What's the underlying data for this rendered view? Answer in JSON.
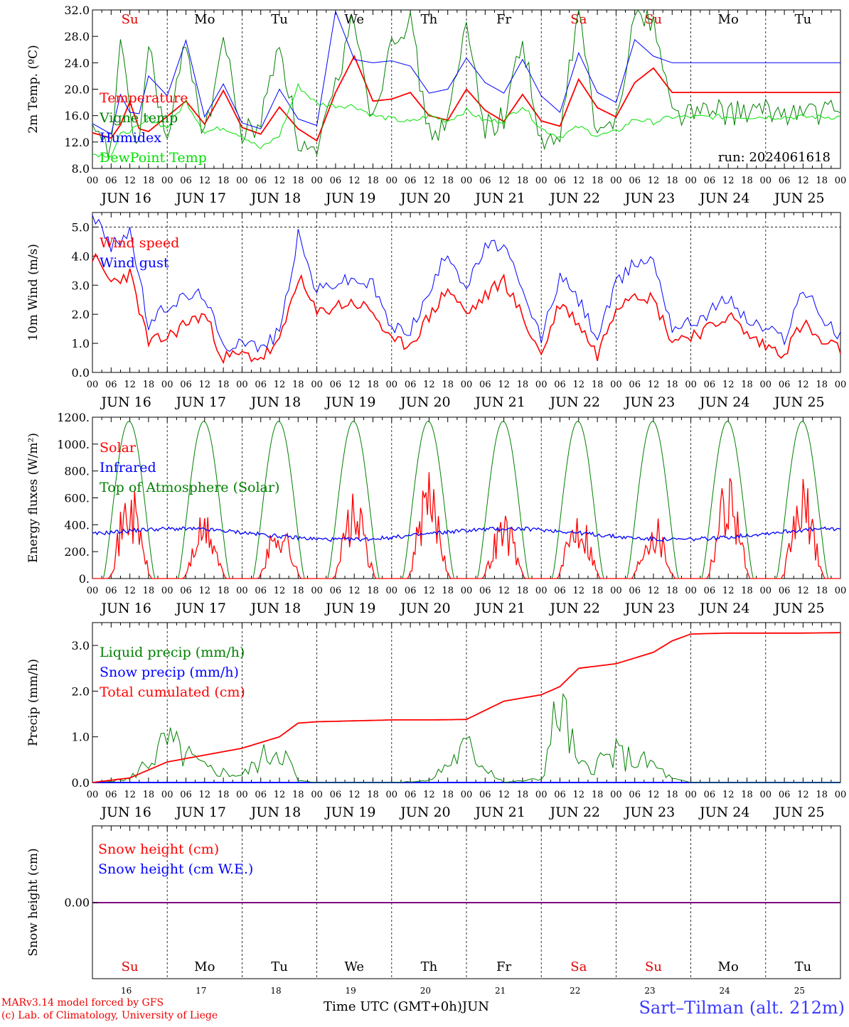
{
  "days": [
    "JUN 16",
    "JUN 17",
    "JUN 18",
    "JUN 19",
    "JUN 20",
    "JUN 21",
    "JUN 22",
    "JUN 23",
    "JUN 24",
    "JUN 25"
  ],
  "weekdays": [
    {
      "label": "Su",
      "color": "#e00000"
    },
    {
      "label": "Mo",
      "color": "#000000"
    },
    {
      "label": "Tu",
      "color": "#000000"
    },
    {
      "label": "We",
      "color": "#000000"
    },
    {
      "label": "Th",
      "color": "#000000"
    },
    {
      "label": "Fr",
      "color": "#000000"
    },
    {
      "label": "Sa",
      "color": "#e00000"
    },
    {
      "label": "Su",
      "color": "#e00000"
    },
    {
      "label": "Mo",
      "color": "#000000"
    },
    {
      "label": "Tu",
      "color": "#000000"
    }
  ],
  "hour_ticks": [
    "00",
    "06",
    "12",
    "18"
  ],
  "day_numbers": [
    "16",
    "17",
    "18",
    "19",
    "20",
    "21",
    "22",
    "23",
    "24",
    "25"
  ],
  "run_label": "run: 2024061618",
  "xaxis_title": "Time UTC (GMT+0h)",
  "month_label": "JUN",
  "footer": {
    "model": "MARv3.14 model forced by GFS",
    "credit": "(c) Lab. of Climatology, University of Liege",
    "site": "Sart–Tilman (alt. 212m)"
  },
  "colors": {
    "red": "#ff0000",
    "green": "#008000",
    "blue": "#0000ff",
    "lightgreen": "#00e000",
    "purple": "#800080"
  },
  "chart_data": [
    {
      "type": "line",
      "ylabel": "2m Temp. (ºC)",
      "ylim": [
        8,
        32
      ],
      "yticks": [
        "8.0",
        "12.0",
        "16.0",
        "20.0",
        "24.0",
        "28.0",
        "32.0"
      ],
      "x": [
        0,
        6,
        9,
        12,
        15,
        18,
        24,
        30,
        36,
        42,
        48,
        54,
        60,
        66,
        72,
        78,
        84,
        90,
        96,
        102,
        108,
        114,
        120,
        126,
        132,
        138,
        144,
        150,
        156,
        162,
        168,
        174,
        180,
        186,
        192,
        198,
        204,
        210,
        216,
        222,
        228,
        234,
        240
      ],
      "series": [
        {
          "name": "Temperature",
          "color": "red",
          "values": [
            13.4,
            12.6,
            14.6,
            18.1,
            14.0,
            13.6,
            15.9,
            18.2,
            14.7,
            19.8,
            14.2,
            13.2,
            17.3,
            14.0,
            12.2,
            19.5,
            25.0,
            18.2,
            18.5,
            19.5,
            16.0,
            15.3,
            20.0,
            16.8,
            15.1,
            19.2,
            15.2,
            14.4,
            21.5,
            17.2,
            15.8,
            21.0,
            23.2,
            19.5,
            19.5,
            19.5,
            19.5,
            19.5,
            19.5,
            19.5,
            19.5,
            19.5,
            19.5
          ]
        },
        {
          "name": "Vigne temp",
          "color": "green",
          "values": [
            13.0,
            10.5,
            28.7,
            15.0,
            12.0,
            26.5,
            11.5,
            27.8,
            12.5,
            27.8,
            13.0,
            15.0,
            27.5,
            12.0,
            9.6,
            20.5,
            31.5,
            15.0,
            28.5,
            30.0,
            13.0,
            15.0,
            29.5,
            14.5,
            15.5,
            28.0,
            11.0,
            12.5,
            33.0,
            12.0,
            16.0,
            31.5,
            30.5,
            16.5,
            16.5,
            16.5,
            16.5,
            16.5,
            16.5,
            16.5,
            16.5,
            16.5,
            16.5
          ]
        },
        {
          "name": "Humidex",
          "color": "blue",
          "values": [
            14.8,
            13.2,
            19.2,
            16.5,
            16.3,
            22.0,
            19.0,
            27.4,
            15.8,
            20.8,
            14.9,
            14.0,
            20.0,
            15.5,
            14.5,
            31.8,
            24.5,
            24.0,
            24.3,
            23.5,
            19.4,
            20.0,
            24.7,
            21.0,
            19.4,
            24.5,
            19.0,
            16.5,
            25.5,
            19.5,
            18.0,
            27.5,
            25.0,
            24.0,
            24.0,
            24.0,
            24.0,
            24.0,
            24.0,
            24.0,
            24.0,
            24.0,
            24.0
          ]
        },
        {
          "name": "DewPoint Temp",
          "color": "lightgreen",
          "values": [
            10.2,
            10.0,
            13.0,
            13.8,
            14.2,
            15.5,
            14.2,
            18.2,
            13.5,
            14.2,
            13.0,
            11.0,
            13.0,
            20.5,
            17.8,
            17.5,
            17.5,
            16.0,
            15.5,
            15.0,
            16.0,
            15.2,
            16.8,
            15.2,
            15.2,
            17.5,
            14.0,
            12.8,
            14.3,
            13.0,
            13.5,
            15.5,
            15.0,
            15.8,
            15.8,
            15.8,
            15.8,
            15.8,
            15.8,
            15.8,
            15.8,
            15.8,
            15.8
          ]
        }
      ]
    },
    {
      "type": "line",
      "ylabel": "10m Wind (m/s)",
      "ylim": [
        0,
        5.5
      ],
      "yticks": [
        "0.0",
        "1.0",
        "2.0",
        "3.0",
        "4.0",
        "5.0"
      ],
      "x": [
        0,
        6,
        12,
        18,
        24,
        30,
        36,
        42,
        48,
        54,
        60,
        66,
        72,
        78,
        84,
        90,
        96,
        102,
        108,
        114,
        120,
        126,
        132,
        138,
        144,
        150,
        156,
        162,
        168,
        174,
        180,
        186,
        192,
        198,
        204,
        210,
        216,
        222,
        228,
        234,
        240
      ],
      "series": [
        {
          "name": "Wind speed",
          "color": "red",
          "values": [
            4.0,
            3.1,
            3.4,
            1.0,
            1.2,
            1.7,
            2.0,
            0.5,
            0.6,
            0.5,
            1.0,
            3.3,
            2.0,
            2.3,
            2.4,
            2.1,
            1.0,
            1.0,
            1.9,
            2.9,
            2.0,
            2.6,
            3.2,
            1.9,
            0.6,
            2.4,
            1.7,
            0.6,
            2.3,
            2.8,
            2.5,
            1.1,
            1.3,
            1.5,
            2.0,
            1.3,
            0.9,
            0.7,
            1.7,
            1.0,
            0.8
          ]
        },
        {
          "name": "Wind gust",
          "color": "blue",
          "values": [
            5.5,
            4.3,
            4.9,
            1.6,
            2.3,
            2.6,
            2.7,
            0.8,
            1.2,
            0.8,
            1.4,
            4.7,
            2.8,
            3.1,
            3.2,
            3.0,
            1.5,
            1.5,
            2.7,
            4.2,
            2.9,
            4.3,
            4.4,
            2.7,
            1.2,
            3.3,
            2.5,
            1.2,
            3.0,
            3.8,
            3.9,
            1.6,
            1.7,
            2.1,
            2.6,
            1.8,
            1.5,
            1.2,
            2.9,
            1.9,
            1.2
          ]
        }
      ]
    },
    {
      "type": "line",
      "ylabel": "Energy fluxes (W/m²)",
      "ylim": [
        0,
        1200
      ],
      "yticks": [
        "0.",
        "200.",
        "400.",
        "600.",
        "800.",
        "1000.",
        "1200."
      ],
      "x": [
        0,
        4,
        6,
        8,
        10,
        12,
        14,
        16,
        18,
        20,
        22,
        24
      ],
      "daily_pattern": true,
      "series": [
        {
          "name": "Solar",
          "color": "red",
          "daily_peaks": [
            720,
            500,
            480,
            640,
            800,
            520,
            580,
            520,
            870,
            750
          ]
        },
        {
          "name": "Infrared",
          "color": "blue",
          "values_range": [
            300,
            410
          ]
        },
        {
          "name": "Top of Atmosphere (Solar)",
          "color": "green",
          "daily_peak": 1170
        }
      ]
    },
    {
      "type": "line",
      "ylabel": "Precip (mm/h)",
      "ylim": [
        0,
        3.5
      ],
      "yticks": [
        "0.0",
        "1.0",
        "2.0",
        "3.0"
      ],
      "x": [
        0,
        12,
        24,
        36,
        48,
        60,
        66,
        72,
        96,
        108,
        120,
        132,
        144,
        150,
        156,
        168,
        180,
        186,
        192,
        204,
        216,
        228,
        240
      ],
      "series": [
        {
          "name": "Liquid precip (mm/h)",
          "color": "green",
          "values": [
            0,
            0.1,
            1.15,
            0.4,
            0.2,
            1.1,
            0.05,
            0,
            0,
            0.05,
            1.0,
            0,
            0.1,
            2.3,
            0.4,
            0.8,
            0.5,
            0.1,
            0,
            0,
            0,
            0,
            0
          ]
        },
        {
          "name": "Snow precip (mm/h)",
          "color": "blue",
          "values": [
            0,
            0,
            0,
            0,
            0,
            0,
            0,
            0,
            0,
            0,
            0,
            0,
            0,
            0,
            0,
            0,
            0,
            0,
            0,
            0,
            0,
            0,
            0
          ]
        },
        {
          "name": "Total cumulated (cm)",
          "color": "red",
          "values": [
            0,
            0.1,
            0.45,
            0.6,
            0.75,
            1.0,
            1.3,
            1.33,
            1.37,
            1.37,
            1.38,
            1.78,
            1.92,
            2.1,
            2.5,
            2.6,
            2.85,
            3.1,
            3.25,
            3.27,
            3.27,
            3.27,
            3.28
          ]
        }
      ]
    },
    {
      "type": "line",
      "ylabel": "Snow height (cm)",
      "ylim": [
        -1,
        1
      ],
      "yticks": [
        "0.00"
      ],
      "series": [
        {
          "name": "Snow height (cm)",
          "color": "red",
          "values": [
            0,
            0
          ]
        },
        {
          "name": "Snow height (cm W.E.)",
          "color": "blue",
          "values": [
            0,
            0
          ]
        }
      ]
    }
  ]
}
